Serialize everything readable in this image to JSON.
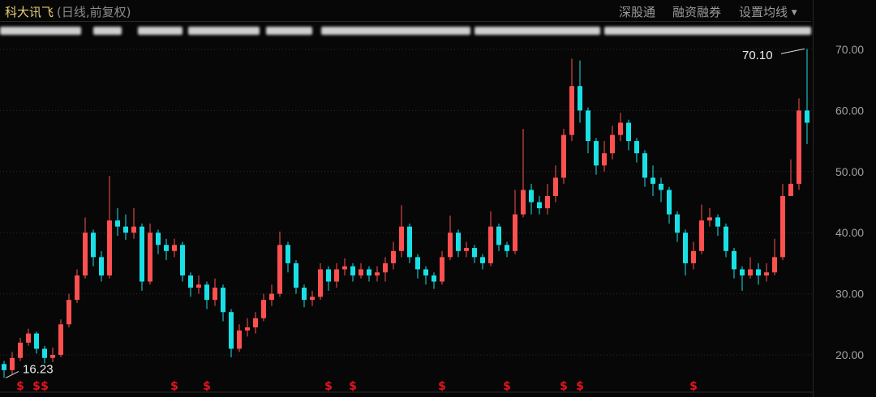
{
  "header": {
    "stock_name": "科大讯飞",
    "mode": "(日线,前复权)",
    "menu": [
      "深股通",
      "融资融券",
      "设置均线"
    ],
    "dropdown_icon": "caret-down-icon"
  },
  "chart_data": {
    "type": "candlestick",
    "title": "",
    "ylim": [
      14.5,
      72
    ],
    "y_ticks": [
      "20.00",
      "30.00",
      "40.00",
      "50.00",
      "60.00",
      "70.00"
    ],
    "y_tick_values": [
      20,
      30,
      40,
      50,
      60,
      70
    ],
    "grid": true,
    "colors": {
      "up": "#ff5050",
      "down": "#19e0e6",
      "grid": "#2e2e2e",
      "axis_text": "#a0a0a0",
      "marker": "#e8141e"
    },
    "candles_ohlc_note_order": "open,close,high,low",
    "candles": [
      [
        18.5,
        17.5,
        19,
        16.23
      ],
      [
        17.5,
        19.5,
        20.5,
        16.8
      ],
      [
        19.5,
        22,
        22.8,
        19
      ],
      [
        22,
        23.5,
        24.3,
        21.5
      ],
      [
        23.5,
        21,
        23.8,
        20.2
      ],
      [
        21,
        19.5,
        21.5,
        18.6
      ],
      [
        19.5,
        20,
        21.2,
        18.8
      ],
      [
        20,
        25,
        25.8,
        19.6
      ],
      [
        25,
        29,
        30,
        24.5
      ],
      [
        29,
        33,
        34,
        28.5
      ],
      [
        33,
        40,
        42.5,
        32.5
      ],
      [
        40,
        36,
        40.5,
        34.5
      ],
      [
        36,
        33,
        37,
        32
      ],
      [
        33,
        42,
        49.3,
        32.5
      ],
      [
        42,
        41,
        44,
        39.5
      ],
      [
        41,
        40,
        43,
        38.8
      ],
      [
        40,
        41,
        44,
        39
      ],
      [
        41,
        32,
        41.5,
        30.5
      ],
      [
        32,
        40,
        41.5,
        31.5
      ],
      [
        40,
        38,
        40.5,
        36.5
      ],
      [
        38,
        37,
        39,
        35.5
      ],
      [
        37,
        38,
        39,
        36
      ],
      [
        38,
        33,
        38.5,
        32
      ],
      [
        33,
        31,
        33.5,
        29.5
      ],
      [
        31,
        31.5,
        33,
        30
      ],
      [
        31.5,
        29,
        32,
        27.5
      ],
      [
        29,
        31,
        32.5,
        28
      ],
      [
        31,
        27,
        31.5,
        25.5
      ],
      [
        27,
        21,
        27.5,
        19.6
      ],
      [
        21,
        24,
        25,
        20.5
      ],
      [
        24,
        24.5,
        26,
        23
      ],
      [
        24.5,
        26,
        27,
        23.5
      ],
      [
        26,
        29,
        30,
        25.5
      ],
      [
        29,
        30,
        31.5,
        28
      ],
      [
        30,
        38,
        40.2,
        29.5
      ],
      [
        38,
        35,
        38.5,
        33.5
      ],
      [
        35,
        31,
        35.5,
        30
      ],
      [
        31,
        29,
        31.5,
        27.8
      ],
      [
        29,
        29.5,
        30.5,
        28
      ],
      [
        29.5,
        34,
        35,
        29
      ],
      [
        34,
        32,
        34.5,
        30.5
      ],
      [
        32,
        34,
        35,
        31
      ],
      [
        34,
        34.5,
        35.8,
        33
      ],
      [
        34.5,
        33,
        35,
        32
      ],
      [
        33,
        34,
        35,
        32.5
      ],
      [
        34,
        33,
        34.5,
        32
      ],
      [
        33,
        33.5,
        34.5,
        32
      ],
      [
        33.5,
        35,
        36,
        32
      ],
      [
        35,
        37,
        38.5,
        34
      ],
      [
        37,
        41,
        44.5,
        36
      ],
      [
        41,
        36,
        41.5,
        35
      ],
      [
        36,
        34,
        36.5,
        32.5
      ],
      [
        34,
        33,
        34.5,
        31.5
      ],
      [
        33,
        32,
        33.5,
        30.8
      ],
      [
        32,
        36,
        37,
        31.5
      ],
      [
        36,
        40,
        42.8,
        35.5
      ],
      [
        40,
        37,
        40.5,
        36
      ],
      [
        37,
        37.5,
        38.5,
        36
      ],
      [
        37.5,
        36,
        38,
        35
      ],
      [
        36,
        35,
        36.5,
        34
      ],
      [
        35,
        41,
        43.5,
        34.5
      ],
      [
        41,
        38,
        41.5,
        37
      ],
      [
        38,
        37,
        38.5,
        36
      ],
      [
        37,
        43,
        47,
        36.5
      ],
      [
        43,
        47,
        57,
        42.5
      ],
      [
        47,
        45,
        48,
        43
      ],
      [
        45,
        44,
        46,
        43
      ],
      [
        44,
        46,
        48,
        43
      ],
      [
        46,
        49,
        51,
        45
      ],
      [
        49,
        56,
        57,
        48
      ],
      [
        56,
        64,
        68.5,
        55
      ],
      [
        64,
        60,
        68.2,
        58
      ],
      [
        60,
        55,
        60.5,
        53
      ],
      [
        55,
        51,
        55.5,
        49.5
      ],
      [
        51,
        53,
        55,
        50
      ],
      [
        53,
        56,
        57.5,
        52
      ],
      [
        56,
        58,
        59.6,
        55
      ],
      [
        58,
        55,
        58.5,
        53.5
      ],
      [
        55,
        53,
        55.5,
        51.5
      ],
      [
        53,
        49,
        53.5,
        47.5
      ],
      [
        49,
        48,
        51,
        46
      ],
      [
        48,
        47,
        49,
        45
      ],
      [
        47,
        43,
        47.5,
        41.5
      ],
      [
        43,
        40,
        43.5,
        38.5
      ],
      [
        40,
        35,
        40.5,
        33
      ],
      [
        35,
        37,
        38.5,
        34
      ],
      [
        37,
        42,
        44.6,
        36.5
      ],
      [
        42,
        42.5,
        44,
        41
      ],
      [
        42.5,
        41,
        43,
        39.5
      ],
      [
        41,
        37,
        41.5,
        36
      ],
      [
        37,
        34,
        37.5,
        32.5
      ],
      [
        34,
        33,
        34.5,
        30.5
      ],
      [
        33,
        34,
        36,
        32.5
      ],
      [
        34,
        33,
        35,
        31.5
      ],
      [
        33,
        33.5,
        35,
        32
      ],
      [
        33.5,
        36,
        39,
        33
      ],
      [
        36,
        46,
        48,
        35.5
      ],
      [
        46,
        48,
        52,
        46
      ],
      [
        48,
        60,
        62,
        47
      ],
      [
        60,
        58,
        70.1,
        54.5
      ]
    ],
    "annotations": [
      {
        "label": "70.10",
        "value": 70.1,
        "candle": 99
      },
      {
        "label": "16.23",
        "value": 16.23,
        "candle": 0
      }
    ],
    "event_marker_symbol": "$",
    "event_marker_candles": [
      2,
      4,
      5,
      21,
      25,
      40,
      43,
      54,
      62,
      69,
      71,
      85
    ]
  }
}
